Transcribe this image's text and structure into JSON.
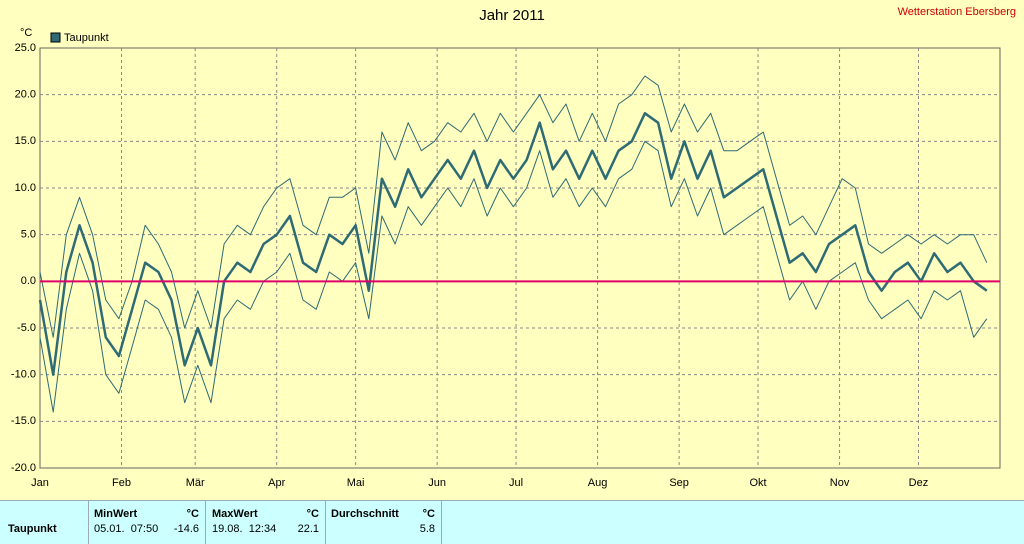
{
  "chart_data": {
    "type": "line",
    "title": "Jahr 2011",
    "station": "Wetterstation Ebersberg",
    "y_unit": "°C",
    "x": [
      0,
      5,
      10,
      15,
      20,
      25,
      30,
      35,
      40,
      45,
      50,
      55,
      60,
      65,
      70,
      75,
      80,
      85,
      90,
      95,
      100,
      105,
      110,
      115,
      120,
      125,
      130,
      135,
      140,
      145,
      150,
      155,
      160,
      165,
      170,
      175,
      180,
      185,
      190,
      195,
      200,
      205,
      210,
      215,
      220,
      225,
      230,
      235,
      240,
      245,
      250,
      255,
      260,
      265,
      270,
      275,
      280,
      285,
      290,
      295,
      300,
      305,
      310,
      315,
      320,
      325,
      330,
      335,
      340,
      345,
      350,
      355,
      360
    ],
    "xlim": [
      0,
      365
    ],
    "xticks": [
      {
        "value": 0,
        "label": "Jan"
      },
      {
        "value": 31,
        "label": "Feb"
      },
      {
        "value": 59,
        "label": "Mär"
      },
      {
        "value": 90,
        "label": "Apr"
      },
      {
        "value": 120,
        "label": "Mai"
      },
      {
        "value": 151,
        "label": "Jun"
      },
      {
        "value": 181,
        "label": "Jul"
      },
      {
        "value": 212,
        "label": "Aug"
      },
      {
        "value": 243,
        "label": "Sep"
      },
      {
        "value": 273,
        "label": "Okt"
      },
      {
        "value": 304,
        "label": "Nov"
      },
      {
        "value": 334,
        "label": "Dez"
      }
    ],
    "ylim": [
      -20,
      25
    ],
    "yticks": [
      {
        "value": -20,
        "label": "-20.0"
      },
      {
        "value": -15,
        "label": "-15.0"
      },
      {
        "value": -10,
        "label": "-10.0"
      },
      {
        "value": -5,
        "label": "-5.0"
      },
      {
        "value": 0,
        "label": "0.0"
      },
      {
        "value": 5,
        "label": "5.0"
      },
      {
        "value": 10,
        "label": "10.0"
      },
      {
        "value": 15,
        "label": "15.0"
      },
      {
        "value": 20,
        "label": "20.0"
      },
      {
        "value": 25,
        "label": "25.0"
      }
    ],
    "grid": true,
    "zero_line_color": "#e0006a",
    "series": [
      {
        "name": "Taupunkt",
        "color": "#2e6b75",
        "values": [
          -2,
          -10,
          1,
          6,
          2,
          -6,
          -8,
          -3,
          2,
          1,
          -2,
          -9,
          -5,
          -9,
          0,
          2,
          1,
          4,
          5,
          7,
          2,
          1,
          5,
          4,
          6,
          -1,
          11,
          8,
          12,
          9,
          11,
          13,
          11,
          14,
          10,
          13,
          11,
          13,
          17,
          12,
          14,
          11,
          14,
          11,
          14,
          15,
          18,
          17,
          11,
          15,
          11,
          14,
          9,
          10,
          11,
          12,
          7,
          2,
          3,
          1,
          4,
          5,
          6,
          1,
          -1,
          1,
          2,
          0,
          3,
          1,
          2,
          0,
          -1
        ]
      },
      {
        "color": "#2e6b75",
        "values": [
          1,
          -6,
          5,
          9,
          5,
          -2,
          -4,
          0,
          6,
          4,
          1,
          -5,
          -1,
          -5,
          4,
          6,
          5,
          8,
          10,
          11,
          6,
          5,
          9,
          9,
          10,
          3,
          16,
          13,
          17,
          14,
          15,
          17,
          16,
          18,
          15,
          18,
          16,
          18,
          20,
          17,
          19,
          15,
          18,
          15,
          19,
          20,
          22,
          21,
          16,
          19,
          16,
          18,
          14,
          14,
          15,
          16,
          11,
          6,
          7,
          5,
          8,
          11,
          10,
          4,
          3,
          4,
          5,
          4,
          5,
          4,
          5,
          5,
          2
        ]
      },
      {
        "color": "#2e6b75",
        "values": [
          -6,
          -14,
          -3,
          3,
          -1,
          -10,
          -12,
          -7,
          -2,
          -3,
          -6,
          -13,
          -9,
          -13,
          -4,
          -2,
          -3,
          0,
          1,
          3,
          -2,
          -3,
          1,
          0,
          2,
          -4,
          7,
          4,
          8,
          6,
          8,
          10,
          8,
          11,
          7,
          10,
          8,
          10,
          14,
          9,
          11,
          8,
          10,
          8,
          11,
          12,
          15,
          14,
          8,
          11,
          7,
          10,
          5,
          6,
          7,
          8,
          3,
          -2,
          0,
          -3,
          0,
          1,
          2,
          -2,
          -4,
          -3,
          -2,
          -4,
          -1,
          -2,
          -1,
          -6,
          -4
        ]
      }
    ]
  },
  "table": {
    "row_label": "Taupunkt",
    "columns": [
      {
        "header": "MinWert",
        "unit": "°C",
        "when": "05.01.  07:50",
        "value": -14.6
      },
      {
        "header": "MaxWert",
        "unit": "°C",
        "when": "19.08.  12:34",
        "value": 22.1
      },
      {
        "header": "Durchschnitt",
        "unit": "°C",
        "value": 5.8
      }
    ]
  }
}
